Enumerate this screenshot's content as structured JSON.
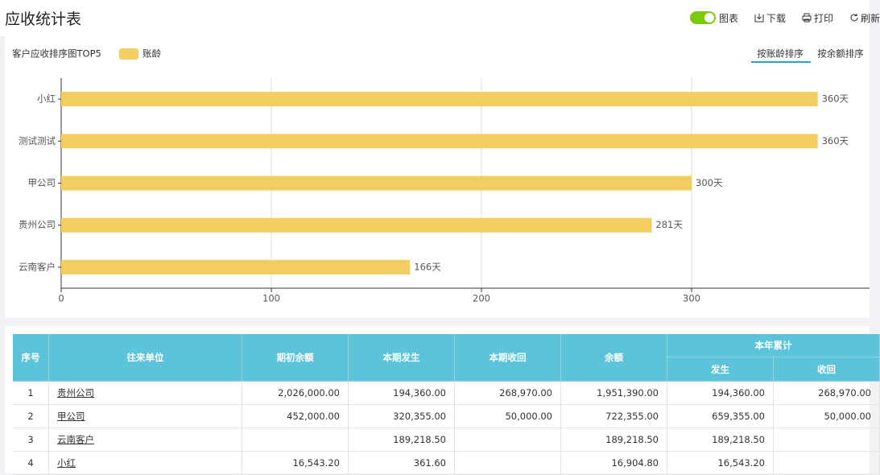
{
  "header": {
    "title": "应收统计表",
    "toolbar": [
      "图表",
      "下载",
      "打印",
      "刷新"
    ]
  },
  "chart_data": {
    "type": "hbar",
    "title": "客户应收排序图TOP5",
    "sort_options": [
      "按账龄排序",
      "按余额排序"
    ],
    "categories": [
      "小红",
      "测试测试",
      "甲公司",
      "贵州公司",
      "云南客户"
    ],
    "series": [
      {
        "name": "账龄",
        "color": "#f2cd62",
        "values": [
          360,
          360,
          300,
          281,
          166
        ],
        "value_labels": [
          "360天",
          "360天",
          "300天",
          "281天",
          "166天"
        ]
      }
    ],
    "xlim": [
      0,
      400
    ],
    "xticks": [
      0,
      100,
      200,
      300
    ],
    "grid": true
  },
  "table": {
    "headers": [
      "序号",
      "往来单位",
      "期初余额",
      "本期发生",
      "本期收回",
      "余额"
    ],
    "group": "本年累计",
    "subheaders": [
      "发生",
      "收回"
    ],
    "rows": [
      [
        "1",
        "贵州公司",
        "2,026,000.00",
        "194,360.00",
        "268,970.00",
        "1,951,390.00",
        "194,360.00",
        "268,970.00"
      ],
      [
        "2",
        "甲公司",
        "452,000.00",
        "320,355.00",
        "50,000.00",
        "722,355.00",
        "659,355.00",
        "50,000.00"
      ],
      [
        "3",
        "云南客户",
        null,
        "189,218.50",
        null,
        "189,218.50",
        "189,218.50",
        null
      ],
      [
        "4",
        "小红",
        "16,543.20",
        "361.60",
        null,
        "16,904.80",
        "16,543.20",
        null
      ]
    ]
  }
}
